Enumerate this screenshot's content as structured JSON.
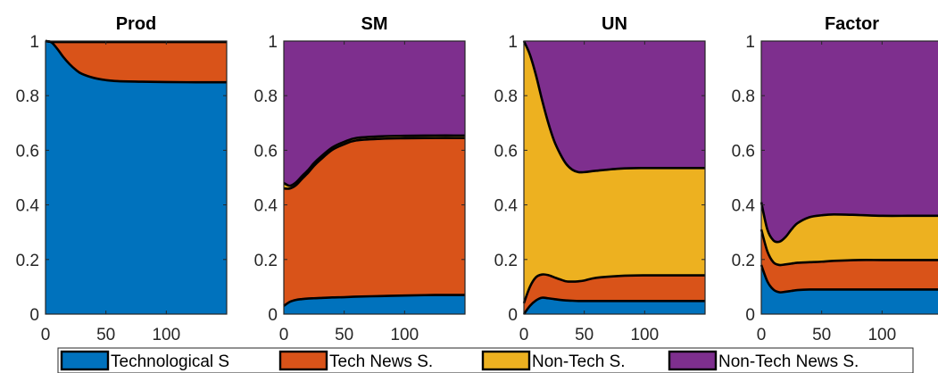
{
  "colors": {
    "tech": "#0072BD",
    "tech_news": "#D95319",
    "nontech": "#EDB120",
    "nontech_news": "#7E2F8E",
    "edge": "#000000"
  },
  "legend": {
    "position": "bottom",
    "items": [
      {
        "key": "tech",
        "label": "Technological S"
      },
      {
        "key": "tech_news",
        "label": "Tech News S."
      },
      {
        "key": "nontech",
        "label": "Non-Tech S."
      },
      {
        "key": "nontech_news",
        "label": "Non-Tech News S."
      }
    ]
  },
  "chart_data": [
    {
      "type": "area",
      "stacked": true,
      "title": "Prod",
      "xlim": [
        0,
        150
      ],
      "ylim": [
        0,
        1
      ],
      "xticks": [
        0,
        50,
        100
      ],
      "yticks": [
        0,
        0.2,
        0.4,
        0.6,
        0.8,
        1
      ],
      "x": [
        0,
        5,
        10,
        15,
        20,
        25,
        30,
        40,
        50,
        60,
        80,
        100,
        125,
        150
      ],
      "series": [
        {
          "key": "tech",
          "values": [
            1.0,
            0.995,
            0.97,
            0.94,
            0.915,
            0.895,
            0.88,
            0.865,
            0.857,
            0.853,
            0.851,
            0.85,
            0.849,
            0.849
          ]
        },
        {
          "key": "tech_news",
          "values": [
            0.0,
            0.002,
            0.027,
            0.057,
            0.082,
            0.102,
            0.117,
            0.132,
            0.14,
            0.144,
            0.146,
            0.147,
            0.148,
            0.148
          ]
        },
        {
          "key": "nontech",
          "values": [
            0,
            0,
            0,
            0,
            0,
            0,
            0,
            0,
            0,
            0,
            0,
            0,
            0,
            0
          ]
        },
        {
          "key": "nontech_news",
          "values": [
            0.0,
            0.003,
            0.003,
            0.003,
            0.003,
            0.003,
            0.003,
            0.003,
            0.003,
            0.003,
            0.003,
            0.003,
            0.003,
            0.003
          ]
        }
      ]
    },
    {
      "type": "area",
      "stacked": true,
      "title": "SM",
      "xlim": [
        0,
        150
      ],
      "ylim": [
        0,
        1
      ],
      "xticks": [
        0,
        50,
        100
      ],
      "yticks": [
        0,
        0.2,
        0.4,
        0.6,
        0.8,
        1
      ],
      "x": [
        0,
        5,
        10,
        15,
        20,
        25,
        30,
        40,
        50,
        60,
        80,
        100,
        125,
        150
      ],
      "series": [
        {
          "key": "tech",
          "values": [
            0.03,
            0.045,
            0.052,
            0.055,
            0.057,
            0.058,
            0.059,
            0.061,
            0.062,
            0.064,
            0.066,
            0.068,
            0.07,
            0.07
          ]
        },
        {
          "key": "tech_news",
          "values": [
            0.43,
            0.415,
            0.42,
            0.44,
            0.46,
            0.485,
            0.505,
            0.54,
            0.56,
            0.572,
            0.576,
            0.576,
            0.575,
            0.575
          ]
        },
        {
          "key": "nontech",
          "values": [
            0.02,
            0.01,
            0.01,
            0.01,
            0.01,
            0.01,
            0.01,
            0.009,
            0.009,
            0.009,
            0.009,
            0.009,
            0.009,
            0.009
          ]
        },
        {
          "key": "nontech_news",
          "values": [
            0.52,
            0.53,
            0.518,
            0.495,
            0.473,
            0.447,
            0.426,
            0.39,
            0.369,
            0.355,
            0.349,
            0.347,
            0.346,
            0.346
          ]
        }
      ]
    },
    {
      "type": "area",
      "stacked": true,
      "title": "UN",
      "xlim": [
        0,
        150
      ],
      "ylim": [
        0,
        1
      ],
      "xticks": [
        0,
        50,
        100
      ],
      "yticks": [
        0,
        0.2,
        0.4,
        0.6,
        0.8,
        1
      ],
      "x": [
        0,
        5,
        10,
        15,
        20,
        25,
        30,
        35,
        40,
        45,
        50,
        60,
        80,
        100,
        125,
        150
      ],
      "series": [
        {
          "key": "tech",
          "values": [
            0.0,
            0.03,
            0.05,
            0.06,
            0.058,
            0.055,
            0.052,
            0.05,
            0.049,
            0.048,
            0.048,
            0.048,
            0.048,
            0.048,
            0.048,
            0.048
          ]
        },
        {
          "key": "tech_news",
          "values": [
            0.04,
            0.07,
            0.085,
            0.085,
            0.085,
            0.08,
            0.075,
            0.07,
            0.07,
            0.072,
            0.075,
            0.085,
            0.092,
            0.094,
            0.094,
            0.094
          ]
        },
        {
          "key": "nontech",
          "values": [
            0.96,
            0.85,
            0.74,
            0.64,
            0.56,
            0.5,
            0.46,
            0.43,
            0.41,
            0.4,
            0.397,
            0.392,
            0.393,
            0.393,
            0.393,
            0.393
          ]
        },
        {
          "key": "nontech_news",
          "values": [
            0.0,
            0.05,
            0.125,
            0.215,
            0.297,
            0.365,
            0.413,
            0.45,
            0.471,
            0.48,
            0.48,
            0.475,
            0.467,
            0.465,
            0.465,
            0.465
          ]
        }
      ]
    },
    {
      "type": "area",
      "stacked": true,
      "title": "Factor",
      "xlim": [
        0,
        150
      ],
      "ylim": [
        0,
        1
      ],
      "xticks": [
        0,
        50,
        100
      ],
      "yticks": [
        0,
        0.2,
        0.4,
        0.6,
        0.8,
        1
      ],
      "x": [
        0,
        5,
        10,
        15,
        20,
        25,
        30,
        40,
        50,
        60,
        80,
        100,
        125,
        150
      ],
      "series": [
        {
          "key": "tech",
          "values": [
            0.18,
            0.12,
            0.09,
            0.08,
            0.082,
            0.085,
            0.088,
            0.09,
            0.09,
            0.09,
            0.09,
            0.09,
            0.09,
            0.09
          ]
        },
        {
          "key": "tech_news",
          "values": [
            0.13,
            0.11,
            0.1,
            0.1,
            0.1,
            0.1,
            0.1,
            0.1,
            0.102,
            0.105,
            0.108,
            0.108,
            0.108,
            0.108
          ]
        },
        {
          "key": "nontech",
          "values": [
            0.1,
            0.08,
            0.08,
            0.085,
            0.1,
            0.125,
            0.145,
            0.165,
            0.17,
            0.17,
            0.165,
            0.162,
            0.162,
            0.162
          ]
        },
        {
          "key": "nontech_news",
          "values": [
            0.59,
            0.69,
            0.73,
            0.735,
            0.718,
            0.69,
            0.667,
            0.645,
            0.638,
            0.635,
            0.637,
            0.64,
            0.64,
            0.64
          ]
        }
      ]
    }
  ]
}
